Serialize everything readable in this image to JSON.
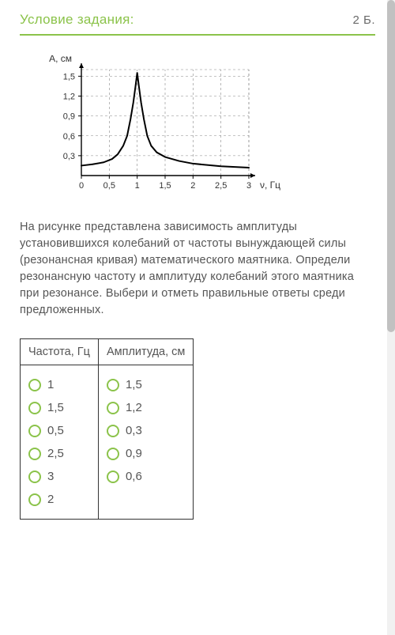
{
  "header": {
    "title": "Условие задания:",
    "points": "2 Б."
  },
  "chart": {
    "y_label": "A, см",
    "x_label": "ν, Гц",
    "x_ticks": [
      "0",
      "0,5",
      "1",
      "1,5",
      "2",
      "2,5",
      "3"
    ],
    "y_ticks": [
      "0,3",
      "0,6",
      "0,9",
      "1,2",
      "1,5"
    ],
    "xlim": [
      0,
      3
    ],
    "ylim": [
      0,
      1.6
    ],
    "grid_color": "#888",
    "axis_color": "#000",
    "curve_color": "#000",
    "curve_width": 2,
    "background": "#ffffff",
    "data_points": [
      [
        0.0,
        0.15
      ],
      [
        0.2,
        0.17
      ],
      [
        0.4,
        0.2
      ],
      [
        0.55,
        0.25
      ],
      [
        0.65,
        0.32
      ],
      [
        0.75,
        0.45
      ],
      [
        0.82,
        0.6
      ],
      [
        0.88,
        0.85
      ],
      [
        0.93,
        1.1
      ],
      [
        0.97,
        1.35
      ],
      [
        1.0,
        1.55
      ],
      [
        1.03,
        1.35
      ],
      [
        1.07,
        1.1
      ],
      [
        1.12,
        0.85
      ],
      [
        1.18,
        0.6
      ],
      [
        1.25,
        0.45
      ],
      [
        1.35,
        0.35
      ],
      [
        1.5,
        0.28
      ],
      [
        1.75,
        0.22
      ],
      [
        2.0,
        0.18
      ],
      [
        2.5,
        0.14
      ],
      [
        3.0,
        0.12
      ]
    ]
  },
  "description": "На рисунке представлена зависимость амплитуды установившихся колебаний от частоты вынуждающей силы (резонансная кривая) математического маятника. Определи резонансную частоту и амплитуду колебаний этого маятника при резонансе. Выбери и отметь правильные ответы среди предложенных.",
  "table": {
    "col1_header": "Частота, Гц",
    "col2_header": "Амплитуда, см",
    "freq_options": [
      "1",
      "1,5",
      "0,5",
      "2,5",
      "3",
      "2"
    ],
    "amp_options": [
      "1,5",
      "1,2",
      "0,3",
      "0,9",
      "0,6"
    ]
  },
  "colors": {
    "accent": "#8bc34a",
    "text": "#555555",
    "border": "#333333"
  }
}
